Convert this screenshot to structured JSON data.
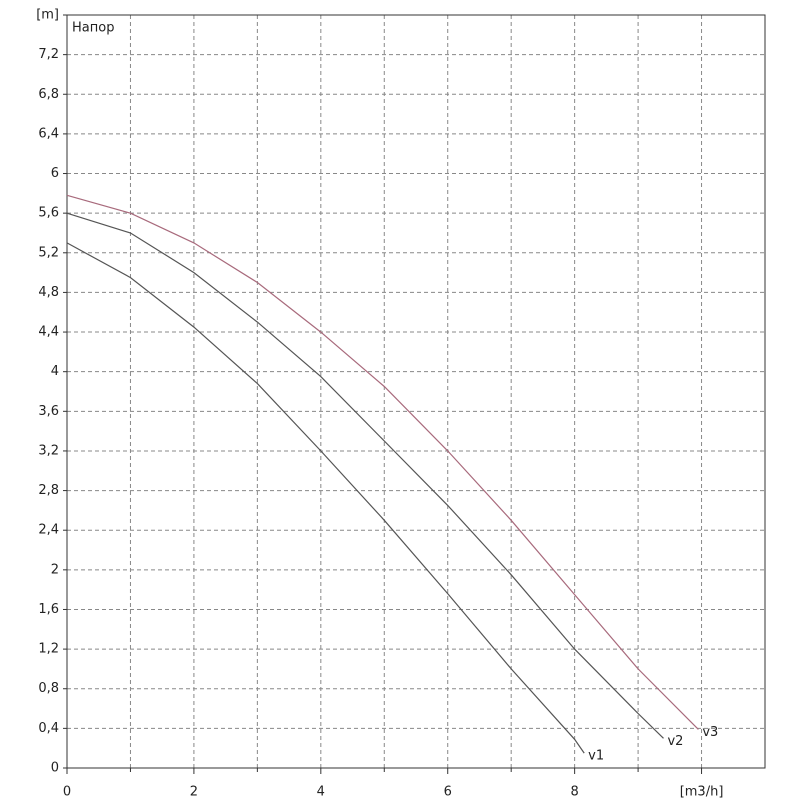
{
  "chart_data": {
    "type": "line",
    "title": "Напор",
    "x": [
      0,
      1,
      2,
      3,
      4,
      5,
      6,
      7,
      8
    ],
    "series": [
      {
        "name": "v1",
        "color": "#555555",
        "x": [
          0,
          1,
          2,
          3,
          4,
          5,
          6,
          7,
          8,
          8.15
        ],
        "values": [
          5.3,
          4.95,
          4.45,
          3.88,
          3.2,
          2.5,
          1.76,
          1.0,
          0.29,
          0.15
        ]
      },
      {
        "name": "v2",
        "color": "#555555",
        "x": [
          0,
          1,
          2,
          3,
          4,
          5,
          6,
          7,
          8,
          9,
          9.4
        ],
        "values": [
          5.6,
          5.4,
          5.0,
          4.5,
          3.95,
          3.3,
          2.65,
          1.95,
          1.2,
          0.55,
          0.3
        ]
      },
      {
        "name": "v3",
        "color": "#a86a7c",
        "x": [
          0,
          1,
          2,
          3,
          4,
          5,
          6,
          7,
          8,
          9,
          9.95
        ],
        "values": [
          5.78,
          5.6,
          5.3,
          4.9,
          4.4,
          3.85,
          3.2,
          2.5,
          1.75,
          1.0,
          0.39
        ]
      }
    ],
    "xlim": [
      0,
      11
    ],
    "ylim": [
      0,
      7.6
    ],
    "xticks": [
      0,
      2,
      4,
      6,
      8,
      {
        "value": 10,
        "label": "[m3/h]"
      }
    ],
    "xminor": [
      1,
      3,
      5,
      7,
      9
    ],
    "yticks": [
      0,
      {
        "value": 0.4,
        "label": "0,4"
      },
      {
        "value": 0.8,
        "label": "0,8"
      },
      {
        "value": 1.2,
        "label": "1,2"
      },
      {
        "value": 1.6,
        "label": "1,6"
      },
      2,
      {
        "value": 2.4,
        "label": "2,4"
      },
      {
        "value": 2.8,
        "label": "2,8"
      },
      {
        "value": 3.2,
        "label": "3,2"
      },
      {
        "value": 3.6,
        "label": "3,6"
      },
      4,
      {
        "value": 4.4,
        "label": "4,4"
      },
      {
        "value": 4.8,
        "label": "4,8"
      },
      {
        "value": 5.2,
        "label": "5,2"
      },
      {
        "value": 5.6,
        "label": "5,6"
      },
      6,
      {
        "value": 6.4,
        "label": "6,4"
      },
      {
        "value": 6.8,
        "label": "6,8"
      },
      {
        "value": 7.2,
        "label": "7,2"
      },
      {
        "value": 7.6,
        "label": "[m]"
      }
    ],
    "grid": true
  }
}
